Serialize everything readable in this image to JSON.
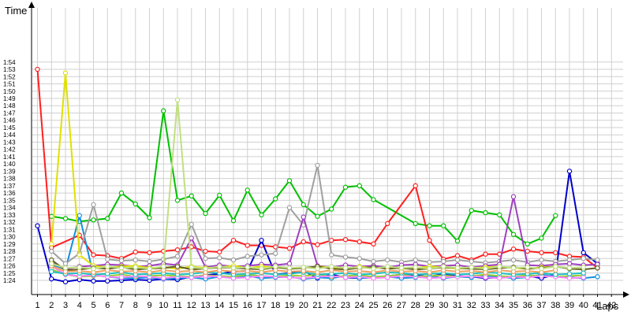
{
  "chart_data": {
    "type": "line",
    "xlabel": "Laps",
    "ylabel": "Time",
    "grid": true,
    "xlim": [
      1,
      42
    ],
    "ylim_seconds": [
      83,
      115
    ],
    "y_ticks": [
      "1:24",
      "1:25",
      "1:26",
      "1:27",
      "1:28",
      "1:29",
      "1:30",
      "1:31",
      "1:32",
      "1:33",
      "1:34",
      "1:35",
      "1:36",
      "1:37",
      "1:38",
      "1:39",
      "1:40",
      "1:41",
      "1:42",
      "1:43",
      "1:44",
      "1:45",
      "1:46",
      "1:47",
      "1:48",
      "1:49",
      "1:50",
      "1:51",
      "1:52",
      "1:53",
      "1:54"
    ],
    "x_ticks": [
      1,
      2,
      3,
      4,
      5,
      6,
      7,
      8,
      9,
      10,
      11,
      12,
      13,
      14,
      15,
      16,
      17,
      18,
      19,
      20,
      21,
      22,
      23,
      24,
      25,
      26,
      27,
      28,
      29,
      30,
      31,
      32,
      33,
      34,
      35,
      36,
      37,
      38,
      39,
      40,
      41,
      42
    ],
    "series": [
      {
        "color": "#00c000",
        "values": [
          null,
          92.8,
          92.5,
          92.1,
          92.3,
          92.5,
          96.0,
          94.5,
          92.6,
          107.3,
          95.0,
          95.6,
          93.2,
          95.7,
          92.2,
          96.4,
          93.0,
          95.2,
          97.7,
          94.4,
          92.8,
          93.8,
          96.8,
          97.0,
          95.1,
          null,
          null,
          91.8,
          91.5,
          91.5,
          89.4,
          93.6,
          93.3,
          93.0,
          90.3,
          89.0,
          89.8,
          92.9,
          null,
          null,
          null,
          null
        ]
      },
      {
        "color": "#ff2020",
        "values": [
          113,
          88.5,
          null,
          90.2,
          87.5,
          87.4,
          87.0,
          87.9,
          87.8,
          88.0,
          88.2,
          88.6,
          88.0,
          87.9,
          89.5,
          88.8,
          88.8,
          88.6,
          88.4,
          89.3,
          88.9,
          89.5,
          89.6,
          89.3,
          89.0,
          91.8,
          null,
          97.0,
          89.5,
          86.9,
          87.4,
          86.8,
          87.6,
          87.6,
          88.3,
          88.0,
          87.8,
          87.8,
          87.3,
          87.2,
          85.7,
          null
        ]
      },
      {
        "color": "#0000cc",
        "values": [
          91.5,
          84.2,
          83.8,
          84.1,
          83.9,
          83.9,
          84.0,
          84.1,
          84.0,
          84.2,
          84.1,
          84.5,
          84.7,
          84.9,
          85.2,
          85.3,
          89.5,
          84.8,
          85.0,
          85.3,
          84.3,
          84.8,
          84.4,
          84.3,
          84.4,
          84.6,
          84.8,
          84.7,
          84.5,
          84.9,
          84.6,
          84.5,
          84.3,
          84.4,
          84.5,
          84.6,
          84.3,
          84.8,
          99.0,
          87.8,
          86.3,
          null
        ]
      },
      {
        "color": "#1090e0",
        "values": [
          null,
          86.2,
          85.5,
          92.9,
          84.7,
          84.5,
          84.3,
          84.3,
          84.4,
          84.2,
          84.3,
          84.4,
          84.2,
          84.5,
          84.3,
          84.6,
          84.3,
          84.4,
          84.5,
          84.2,
          84.4,
          84.3,
          84.6,
          84.3,
          84.4,
          84.5,
          84.3,
          84.4,
          84.6,
          84.3,
          84.5,
          84.4,
          84.6,
          84.5,
          84.3,
          84.4,
          84.8,
          84.5,
          84.4,
          84.3,
          84.5,
          null
        ]
      },
      {
        "color": "#9acd32",
        "values": [
          null,
          85.5,
          84.8,
          84.5,
          84.6,
          84.6,
          84.8,
          84.5,
          84.6,
          84.7,
          84.6,
          84.5,
          84.7,
          84.6,
          84.5,
          84.8,
          84.6,
          84.5,
          84.7,
          84.6,
          84.8,
          84.5,
          84.6,
          84.7,
          84.5,
          84.6,
          84.8,
          84.5,
          84.6,
          84.7,
          84.5,
          84.6,
          84.8,
          84.6,
          84.5,
          84.7,
          84.6,
          84.5,
          84.6,
          84.7,
          null,
          null
        ]
      },
      {
        "color": "#a0a0a0",
        "values": [
          null,
          88.0,
          86.3,
          87.7,
          94.4,
          86.9,
          86.7,
          86.8,
          86.6,
          86.9,
          87.3,
          91.7,
          87.0,
          87.1,
          86.8,
          87.3,
          87.5,
          87.7,
          94.0,
          91.6,
          99.8,
          87.5,
          87.2,
          87.0,
          86.6,
          86.8,
          86.5,
          86.8,
          86.5,
          86.6,
          86.8,
          86.6,
          86.4,
          86.6,
          86.8,
          86.5,
          86.8,
          86.6,
          86.8,
          87.0,
          86.8,
          null
        ]
      },
      {
        "color": "#a040c0",
        "values": [
          null,
          86.5,
          85.5,
          85.9,
          86.0,
          86.2,
          86.1,
          85.9,
          86.0,
          86.3,
          86.1,
          89.8,
          85.8,
          86.1,
          85.9,
          86.0,
          86.2,
          86.1,
          86.3,
          92.7,
          86.0,
          85.8,
          86.1,
          85.9,
          86.0,
          85.8,
          86.1,
          86.2,
          85.9,
          86.0,
          86.1,
          85.8,
          86.0,
          86.2,
          95.5,
          86.1,
          86.0,
          86.2,
          86.3,
          86.1,
          86.2,
          null
        ]
      },
      {
        "color": "#e0e000",
        "values": [
          null,
          89.0,
          112.5,
          87.5,
          86.0,
          85.8,
          85.9,
          86.0,
          85.7,
          85.8,
          85.6,
          85.9,
          85.7,
          85.8,
          86.0,
          85.7,
          85.9,
          85.8,
          85.6,
          85.7,
          85.9,
          85.8,
          85.6,
          85.9,
          85.7,
          85.8,
          85.6,
          85.7,
          85.9,
          85.8,
          85.6,
          85.7,
          85.8,
          85.9,
          85.7,
          85.6,
          85.8,
          85.9,
          null,
          null,
          null,
          null
        ]
      },
      {
        "color": "#ff80ff",
        "values": [
          null,
          86.0,
          84.8,
          84.6,
          84.7,
          84.5,
          84.4,
          84.6,
          84.5,
          84.3,
          84.5,
          84.4,
          84.6,
          84.5,
          84.3,
          84.4,
          84.6,
          84.5,
          84.4,
          84.3,
          84.5,
          84.6,
          84.4,
          84.5,
          84.3,
          84.4,
          84.6,
          84.5,
          84.3,
          84.4,
          84.5,
          84.6,
          84.4,
          84.3,
          84.5,
          84.4,
          84.6,
          84.5,
          84.3,
          84.4,
          null,
          null
        ]
      },
      {
        "color": "#606020",
        "values": [
          null,
          86.8,
          85.4,
          85.5,
          85.7,
          85.6,
          85.8,
          85.5,
          85.6,
          85.7,
          85.9,
          85.5,
          85.6,
          85.8,
          85.7,
          85.6,
          85.5,
          85.8,
          85.6,
          85.7,
          85.9,
          85.6,
          85.5,
          85.7,
          85.8,
          85.6,
          85.7,
          85.5,
          85.6,
          85.8,
          85.7,
          85.6,
          85.5,
          85.7,
          85.8,
          85.6,
          85.7,
          85.9,
          85.6,
          85.5,
          85.7,
          null
        ]
      },
      {
        "color": "#20c0c0",
        "values": [
          null,
          85.2,
          84.9,
          85.0,
          84.8,
          84.9,
          85.1,
          84.8,
          84.9,
          85.0,
          84.8,
          84.9,
          85.1,
          85.0,
          84.8,
          84.9,
          85.0,
          84.8,
          84.9,
          85.1,
          84.8,
          84.9,
          85.0,
          84.8,
          84.9,
          85.1,
          85.0,
          84.8,
          84.9,
          85.0,
          84.8,
          84.9,
          85.1,
          85.0,
          84.8,
          84.9,
          85.0,
          84.8,
          84.9,
          85.0,
          null,
          null
        ]
      },
      {
        "color": "#f0a060",
        "values": [
          null,
          86.0,
          85.2,
          85.3,
          85.1,
          85.4,
          85.2,
          85.3,
          85.1,
          85.4,
          85.2,
          85.3,
          85.1,
          85.4,
          85.2,
          85.3,
          85.1,
          85.4,
          85.2,
          85.3,
          85.1,
          85.4,
          85.2,
          85.3,
          85.1,
          85.4,
          85.2,
          85.3,
          85.1,
          85.4,
          85.2,
          85.3,
          85.1,
          85.4,
          85.2,
          85.3,
          85.1,
          85.4,
          null,
          null,
          null,
          null
        ]
      },
      {
        "color": "#c0e080",
        "values": [
          null,
          86.3,
          85.7,
          85.8,
          85.6,
          85.9,
          85.7,
          85.8,
          85.6,
          85.9,
          108.8,
          85.8,
          85.6,
          85.9,
          85.7,
          85.8,
          85.6,
          85.9,
          85.7,
          85.8,
          85.6,
          85.9,
          85.7,
          85.8,
          85.6,
          85.9,
          85.7,
          85.8,
          85.6,
          85.9,
          85.7,
          85.8,
          85.6,
          85.9,
          85.7,
          85.8,
          85.6,
          85.9,
          85.7,
          85.8,
          null,
          null
        ]
      }
    ]
  }
}
